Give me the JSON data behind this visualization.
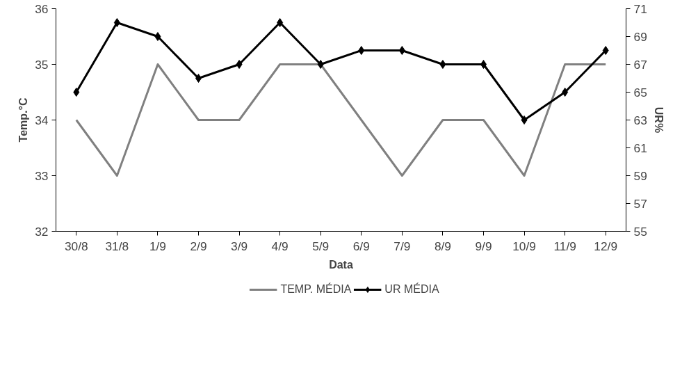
{
  "chart_data": {
    "type": "line",
    "xlabel": "Data",
    "ylabel": "Temp.°C",
    "y2label": "UR%",
    "categories": [
      "30/8",
      "31/8",
      "1/9",
      "2/9",
      "3/9",
      "4/9",
      "5/9",
      "6/9",
      "7/9",
      "8/9",
      "9/9",
      "10/9",
      "11/9",
      "12/9"
    ],
    "series": [
      {
        "name": "TEMP. MÉDIA",
        "color": "#808080",
        "marker": "none",
        "values": [
          34,
          33,
          35,
          34,
          34,
          35,
          35,
          34,
          33,
          34,
          34,
          33,
          35,
          35
        ]
      },
      {
        "name": "UR MÉDIA",
        "color": "#000000",
        "marker": "diamond",
        "axis": "y2",
        "values": [
          65,
          70,
          69,
          66,
          67,
          70,
          67,
          68,
          68,
          67,
          67,
          63,
          65,
          68
        ]
      }
    ],
    "ylim": [
      32,
      36
    ],
    "yticks": [
      32,
      33,
      34,
      35,
      36
    ],
    "y2lim": [
      55,
      71
    ],
    "y2ticks": [
      55,
      57,
      59,
      61,
      63,
      65,
      67,
      69,
      71
    ],
    "grid": false,
    "legend": "bottom",
    "line_style": "solid"
  }
}
